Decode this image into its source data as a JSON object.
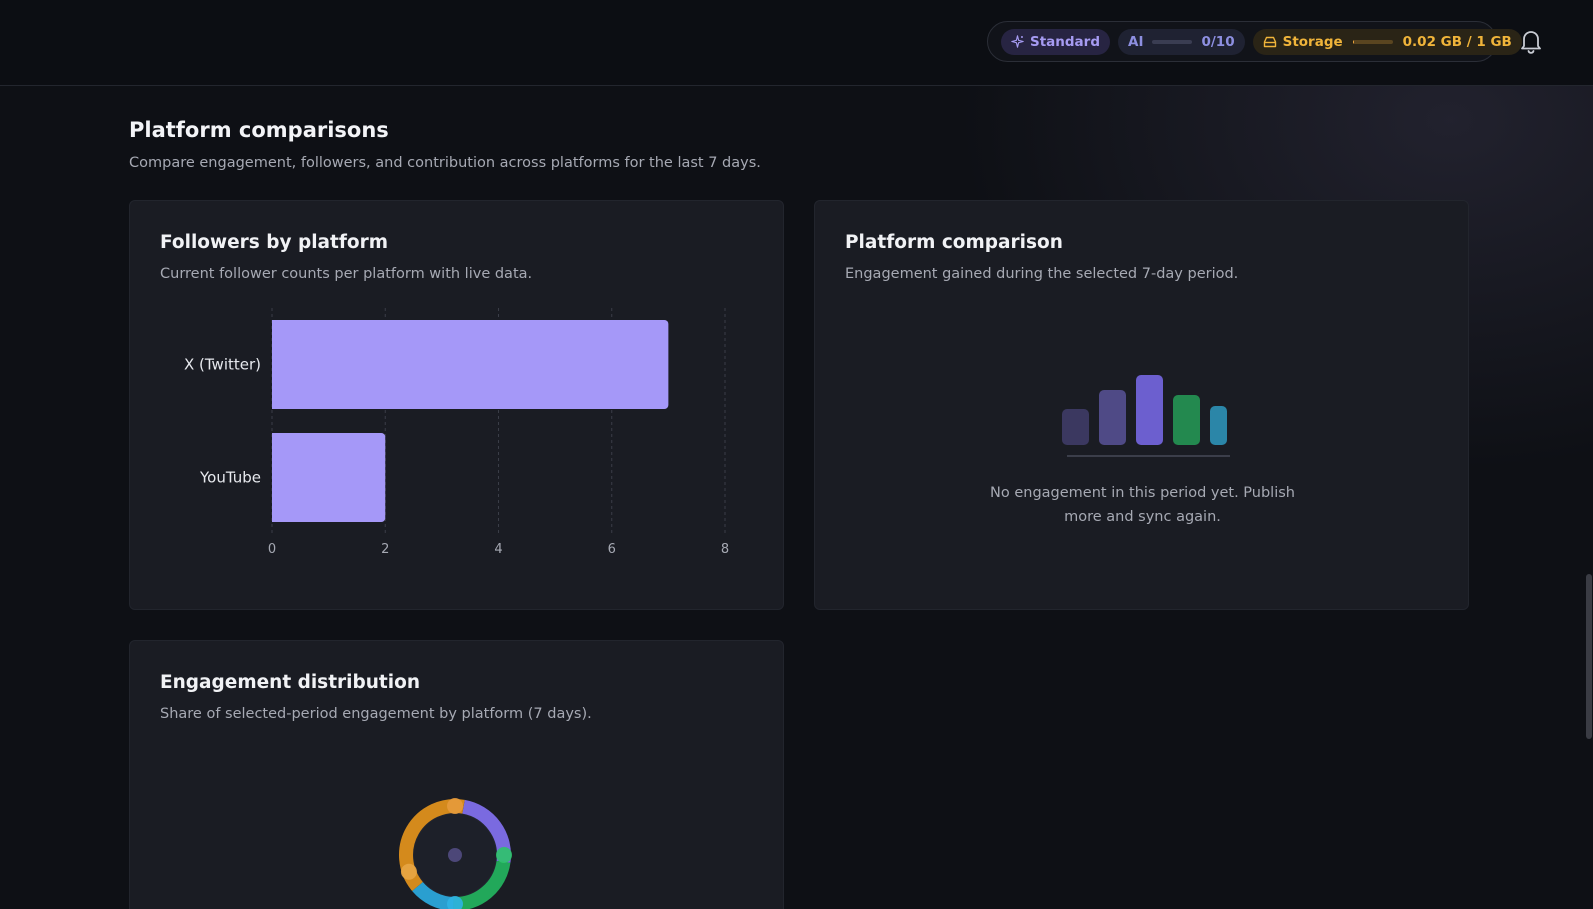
{
  "header": {
    "plan_label": "Standard",
    "ai_label": "AI",
    "ai_usage": "0/10",
    "ai_fraction": 0,
    "storage_label": "Storage",
    "storage_usage": "0.02 GB / 1 GB",
    "storage_fraction": 0.02,
    "icons": {
      "plan": "sparkle-icon",
      "storage": "storage-drive-icon",
      "notifications": "bell-icon"
    }
  },
  "section": {
    "title": "Platform comparisons",
    "subtitle": "Compare engagement, followers, and contribution across platforms for the last 7 days."
  },
  "followers_card": {
    "title": "Followers by platform",
    "subtitle": "Current follower counts per platform with live data."
  },
  "comparison_card": {
    "title": "Platform comparison",
    "subtitle": "Engagement gained during the selected 7-day period.",
    "empty_line1": "No engagement in this period yet. Publish",
    "empty_line2": "more and sync again."
  },
  "distribution_card": {
    "title": "Engagement distribution",
    "subtitle": "Share of selected-period engagement by platform (7 days)."
  },
  "colors": {
    "bar": "#a598f8",
    "placeholder_bars": [
      "#3b3860",
      "#4f4a86",
      "#6c5fcf",
      "#23894f",
      "#2b86a8"
    ],
    "donut": [
      "#7a6ae0",
      "#22a85a",
      "#2a9fd0",
      "#d48a1c"
    ]
  },
  "chart_data": [
    {
      "type": "bar",
      "orientation": "horizontal",
      "categories": [
        "X (Twitter)",
        "YouTube"
      ],
      "values": [
        7,
        2
      ],
      "xlim": [
        0,
        8
      ],
      "xticks": [
        0,
        2,
        4,
        6,
        8
      ],
      "grid": true
    }
  ]
}
